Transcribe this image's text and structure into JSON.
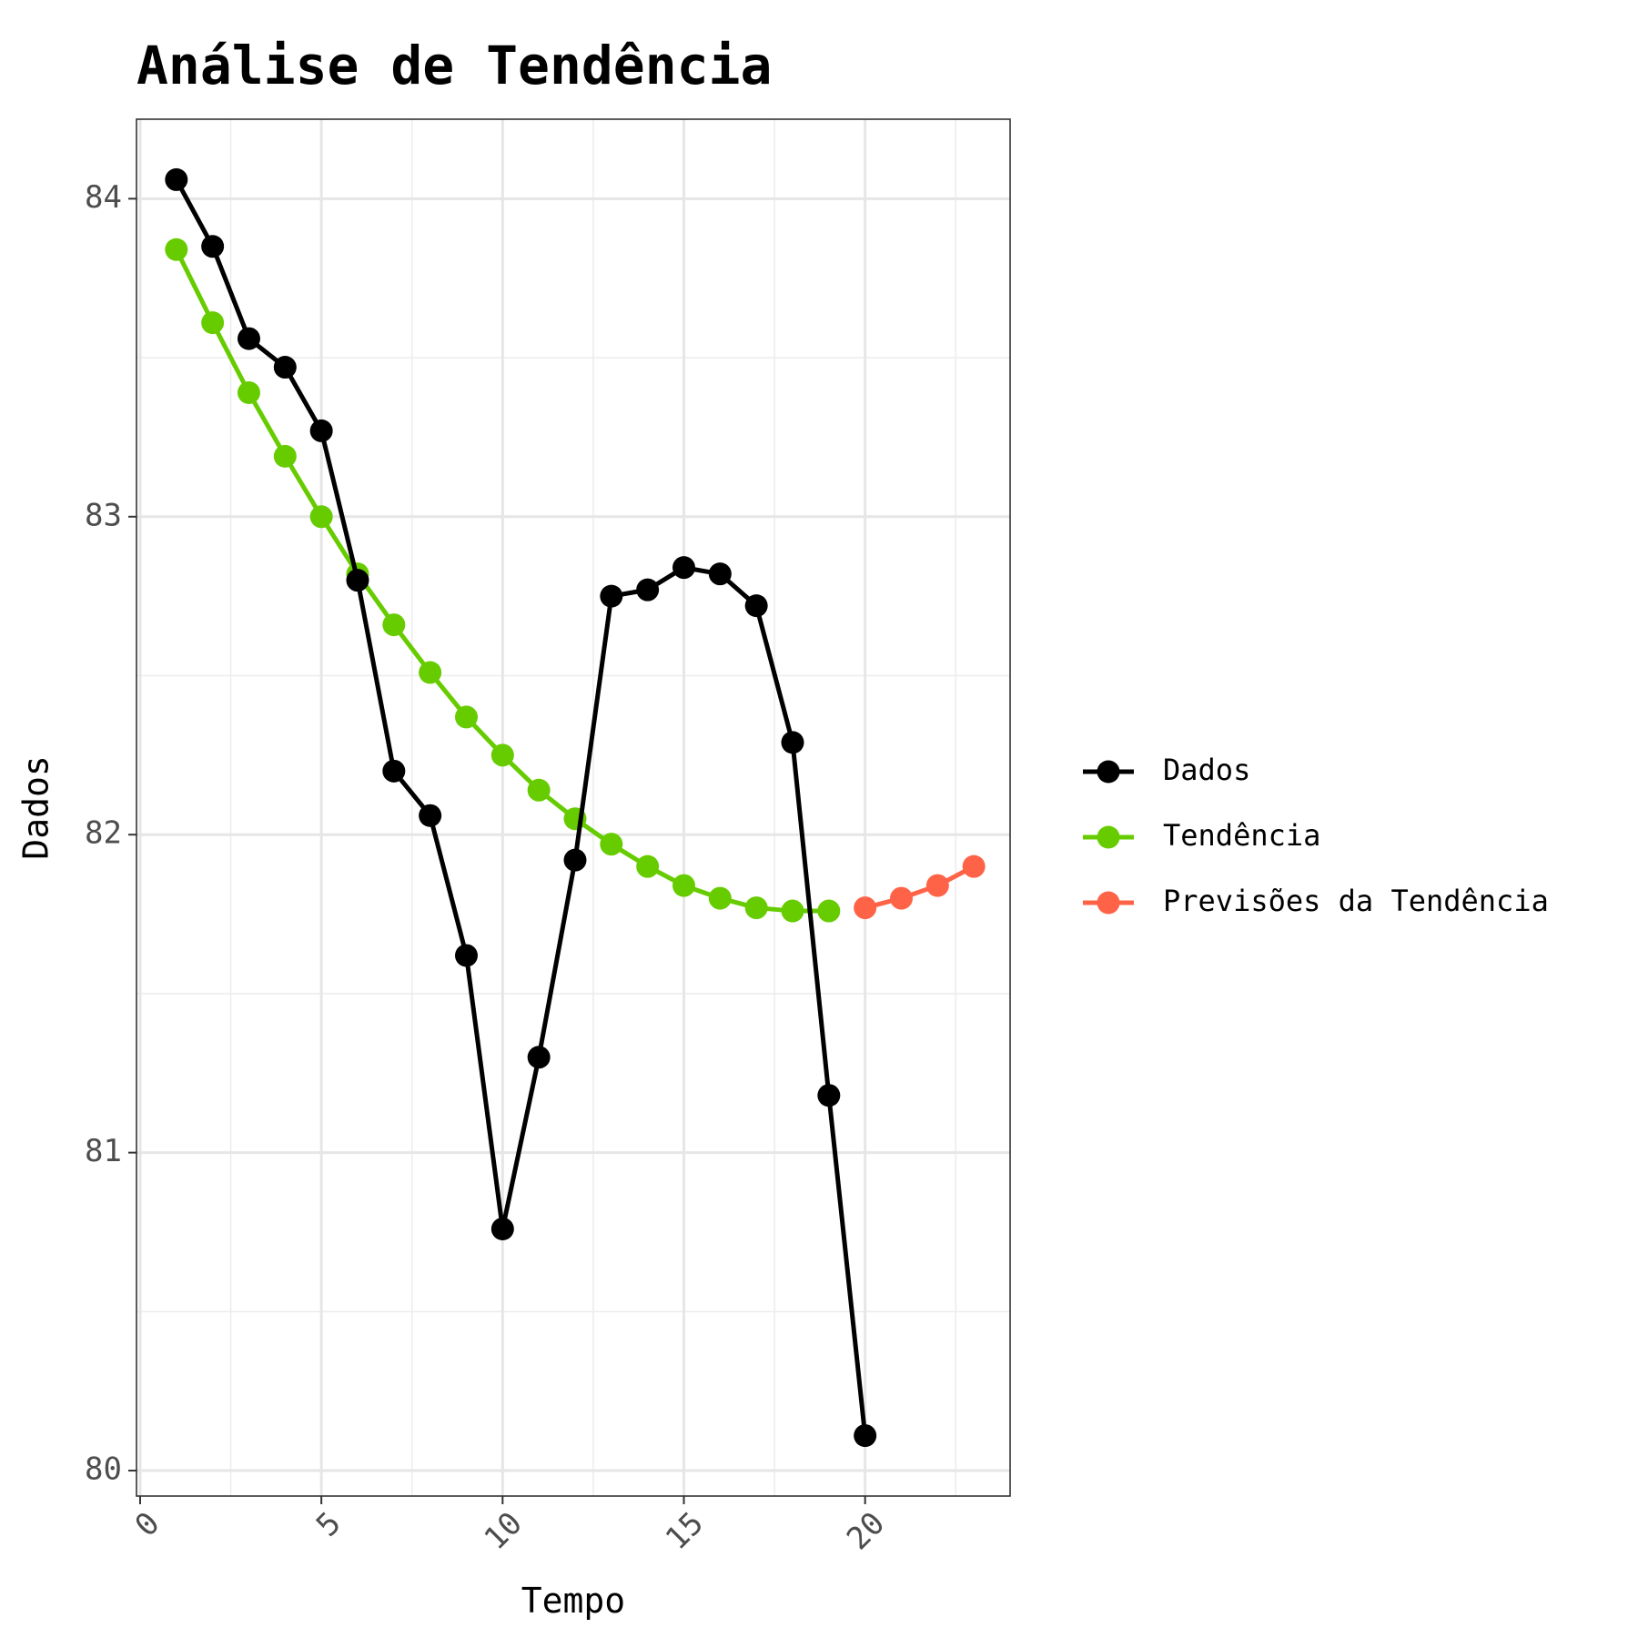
{
  "chart_data": {
    "type": "line",
    "title": "Análise de Tendência",
    "xlabel": "Tempo",
    "ylabel": "Dados",
    "xlim": [
      -0.1,
      24.0
    ],
    "ylim": [
      79.92,
      84.25
    ],
    "x_ticks": [
      0,
      5,
      10,
      15,
      20
    ],
    "x_tick_labels": [
      "0",
      "5",
      "10",
      "15",
      "20"
    ],
    "y_ticks": [
      80,
      81,
      82,
      83,
      84
    ],
    "y_tick_labels": [
      "80",
      "81",
      "82",
      "83",
      "84"
    ],
    "grid": true,
    "legend_position": "right",
    "series": [
      {
        "name": "Dados",
        "color": "#000000",
        "x": [
          1,
          2,
          3,
          4,
          5,
          6,
          7,
          8,
          9,
          10,
          11,
          12,
          13,
          14,
          15,
          16,
          17,
          18,
          19,
          20
        ],
        "values": [
          84.06,
          83.85,
          83.56,
          83.47,
          83.27,
          82.8,
          82.2,
          82.06,
          81.62,
          80.76,
          81.3,
          81.92,
          82.75,
          82.77,
          82.84,
          82.82,
          82.72,
          82.29,
          81.18,
          80.11
        ]
      },
      {
        "name": "Tendência",
        "color": "#66cc00",
        "x": [
          1,
          2,
          3,
          4,
          5,
          6,
          7,
          8,
          9,
          10,
          11,
          12,
          13,
          14,
          15,
          16,
          17,
          18,
          19
        ],
        "values": [
          83.84,
          83.61,
          83.39,
          83.19,
          83.0,
          82.82,
          82.66,
          82.51,
          82.37,
          82.25,
          82.14,
          82.05,
          81.97,
          81.9,
          81.84,
          81.8,
          81.77,
          81.76,
          81.76
        ]
      },
      {
        "name": "Previsões da Tendência",
        "color": "#ff6347",
        "x": [
          20,
          21,
          22,
          23
        ],
        "values": [
          81.77,
          81.8,
          81.84,
          81.9
        ]
      }
    ]
  }
}
